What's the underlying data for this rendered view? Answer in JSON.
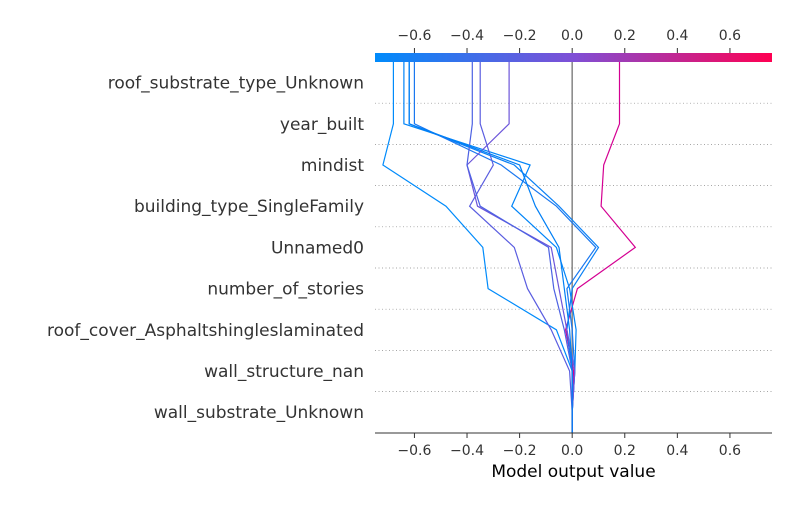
{
  "chart_data": {
    "type": "decision",
    "xlabel": "Model output value",
    "base_value": 0.0,
    "xlim": [
      -0.75,
      0.76
    ],
    "x_ticks": [
      -0.6,
      -0.4,
      -0.2,
      0.0,
      0.2,
      0.4,
      0.6
    ],
    "x_tick_labels": [
      "−0.6",
      "−0.4",
      "−0.2",
      "0.0",
      "0.2",
      "0.4",
      "0.6"
    ],
    "colormap": {
      "low": "#008bfb",
      "mid": "#7f4fd6",
      "high": "#ff0052"
    },
    "features": [
      "roof_substrate_type_Unknown",
      "year_built",
      "mindist",
      "building_type_SingleFamily",
      "Unnamed0",
      "number_of_stories",
      "roof_cover_Asphaltshingleslaminated",
      "wall_structure_nan",
      "wall_substrate_Unknown"
    ],
    "samples": [
      {
        "output": 0.18,
        "color": "#d40092",
        "values": [
          0.0,
          0.0,
          0.005,
          -0.025,
          0.02,
          0.24,
          0.11,
          0.12,
          0.18
        ]
      },
      {
        "output": -0.68,
        "color": "#008bfb",
        "values": [
          0.0,
          0.0,
          0.0,
          -0.06,
          -0.32,
          -0.34,
          -0.48,
          -0.72,
          -0.68
        ]
      },
      {
        "output": -0.64,
        "color": "#0084f8",
        "values": [
          0.0,
          0.0,
          0.01,
          0.015,
          -0.01,
          -0.06,
          -0.23,
          -0.16,
          -0.64
        ]
      },
      {
        "output": -0.62,
        "color": "#0a80f5",
        "values": [
          0.0,
          0.0,
          0.0,
          -0.02,
          0.0,
          0.1,
          -0.05,
          -0.22,
          -0.62
        ]
      },
      {
        "output": -0.6,
        "color": "#1a78f0",
        "values": [
          0.0,
          0.0,
          0.01,
          0.0,
          -0.02,
          0.09,
          -0.06,
          -0.27,
          -0.6
        ]
      },
      {
        "output": -0.35,
        "color": "#5a5de0",
        "values": [
          0.0,
          0.0,
          -0.01,
          -0.08,
          -0.17,
          -0.22,
          -0.39,
          -0.3,
          -0.35
        ]
      },
      {
        "output": -0.24,
        "color": "#6c55da",
        "values": [
          0.0,
          0.0,
          0.01,
          -0.02,
          -0.05,
          -0.08,
          -0.36,
          -0.4,
          -0.24
        ]
      },
      {
        "output": -0.38,
        "color": "#4d62e3",
        "values": [
          0.0,
          0.0,
          0.0,
          -0.03,
          -0.07,
          -0.09,
          -0.35,
          -0.4,
          -0.38
        ]
      },
      {
        "output": -0.62,
        "color": "#007ff5",
        "values": [
          0.0,
          0.0,
          0.0,
          -0.01,
          -0.03,
          -0.05,
          -0.14,
          -0.2,
          -0.62
        ]
      }
    ]
  }
}
